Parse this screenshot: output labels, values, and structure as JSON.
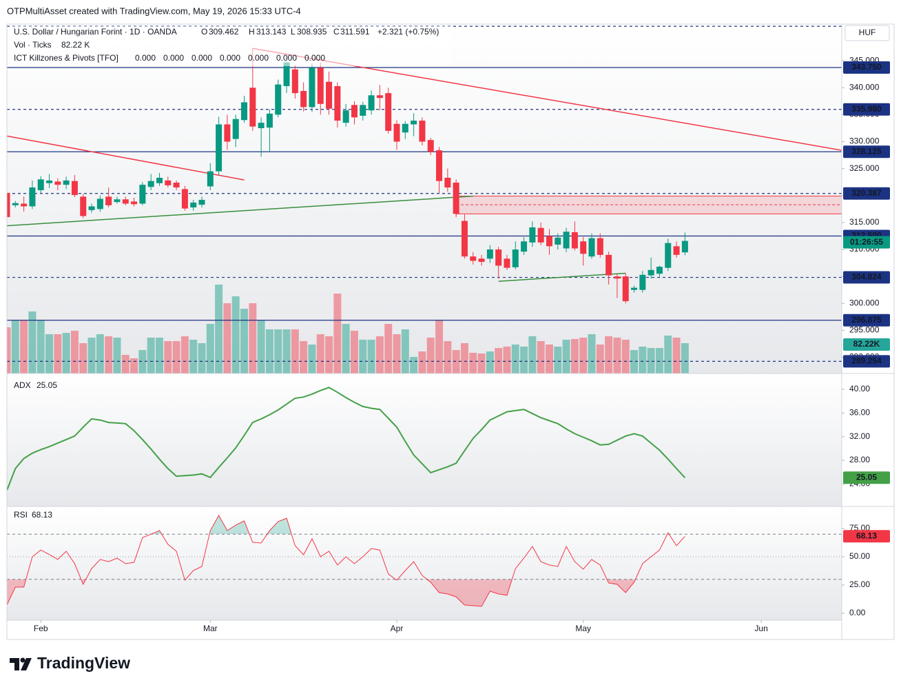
{
  "header": {
    "attribution": "OTPMultiAsset created with TradingView.com, May 19, 2026 15:33 UTC-4"
  },
  "footer": {
    "brand": "TradingView"
  },
  "chart_data": {
    "type": "candlestick",
    "title": "U.S. Dollar / Hungarian Forint · 1D · OANDA",
    "ohlc_labels": [
      "O",
      "H",
      "L",
      "C"
    ],
    "change": "+2.321 (+0.75%)",
    "currency": "HUF",
    "countdown": "01:26:55",
    "up_color": "#089981",
    "down_color": "#f23645",
    "level_color": "#1c3383",
    "open": [
      320.5,
      318.2,
      318.5,
      318,
      321,
      322.3,
      322.6,
      322,
      322.7,
      319.8,
      317.3,
      317.5,
      319.8,
      318.8,
      319.3,
      318.9,
      318.5,
      321.6,
      322.3,
      322.8,
      322.4,
      321.2,
      317.8,
      318.3,
      321.7,
      324.5,
      333.2,
      330.5,
      334,
      340,
      332.5,
      332.6,
      335,
      340.3,
      343.4,
      339.4,
      336.4,
      343.7,
      341.1,
      340.3,
      333.5,
      336.8,
      334.8,
      335.8,
      338.6,
      339,
      333.3,
      331.7,
      333.2,
      333.9,
      330.3,
      328.4,
      323.3,
      322.4,
      315.3,
      308.7,
      308.3,
      308.3,
      310,
      308.3,
      306.7,
      309.6,
      311.3,
      314,
      312.5,
      310.9,
      310.2,
      313.2,
      311.5,
      308.7,
      312.1,
      309,
      305,
      305,
      302.5,
      302.5,
      305.2,
      305.5,
      306.6,
      310.6,
      309.462
    ],
    "high": [
      322,
      319,
      319.8,
      322.8,
      323.6,
      324,
      323.2,
      323.5,
      323.8,
      320.3,
      318.5,
      320,
      321.5,
      319.8,
      319.8,
      319.6,
      322.5,
      324,
      324.2,
      323.5,
      322.8,
      321.8,
      319.2,
      319.8,
      326,
      334.6,
      335,
      335,
      338.5,
      347.3,
      334.5,
      336,
      341.5,
      345,
      344.2,
      341,
      344.5,
      344.7,
      343,
      341,
      337,
      337.5,
      337.4,
      339.5,
      340.5,
      340,
      334,
      333.8,
      335.3,
      334.5,
      330.7,
      329,
      325,
      323,
      316.5,
      309.5,
      309,
      310.8,
      310.5,
      309,
      311.5,
      312.3,
      315.2,
      315,
      313.8,
      313,
      314,
      315.2,
      312.3,
      313,
      313,
      309.6,
      305.5,
      305.6,
      303.3,
      306,
      308.5,
      307,
      312,
      311.5,
      313.143
    ],
    "low": [
      315.5,
      317.8,
      317,
      317.5,
      320.5,
      321.4,
      321,
      321.2,
      319.7,
      315.8,
      316.8,
      317,
      317.8,
      318.5,
      318.2,
      318,
      318.2,
      321,
      321.8,
      321.5,
      321,
      317.2,
      317.2,
      317.8,
      321,
      323.8,
      328.5,
      329,
      333.5,
      332,
      327.2,
      328,
      334.5,
      339,
      338,
      335.6,
      335.5,
      335,
      335,
      332.6,
      332.8,
      333.2,
      333.9,
      335,
      335.8,
      331.5,
      328.5,
      330.5,
      331,
      329.3,
      327.5,
      320.5,
      320.7,
      316,
      308.3,
      307.2,
      307,
      307.5,
      304.6,
      306.2,
      306.3,
      309,
      310.5,
      310.8,
      309,
      310,
      309.5,
      309.8,
      307,
      308.3,
      308.5,
      303.5,
      301,
      300,
      302,
      302,
      304.6,
      304.9,
      306,
      308.5,
      308.935
    ],
    "close": [
      316,
      318.6,
      318,
      321.5,
      323,
      322.8,
      322,
      322.8,
      320.1,
      316.2,
      318,
      319.4,
      318.2,
      319.3,
      318.5,
      318.4,
      322,
      322.7,
      323.3,
      321.9,
      321.5,
      317.6,
      318.7,
      319.2,
      324.5,
      333.2,
      330,
      334.2,
      337.3,
      332.8,
      333.5,
      335.2,
      340.6,
      344.7,
      339,
      336.4,
      343.7,
      337,
      336.1,
      333.9,
      335.8,
      334.5,
      336.8,
      338.6,
      338.1,
      332,
      330,
      333.3,
      333.9,
      330,
      328.1,
      322.7,
      321.5,
      316.6,
      308.7,
      307.9,
      307.7,
      310,
      307,
      306.6,
      310,
      311.5,
      314.1,
      311.3,
      310.6,
      312.2,
      313.3,
      310.2,
      309.2,
      312.1,
      309,
      305.2,
      304.6,
      300.4,
      302.9,
      305.3,
      306.2,
      306.8,
      311.2,
      309,
      311.591
    ],
    "xlim": [
      0,
      98.5
    ],
    "xticks": [
      {
        "value": 4,
        "label": "Feb"
      },
      {
        "value": 24,
        "label": "Mar"
      },
      {
        "value": 46,
        "label": "Apr"
      },
      {
        "value": 68,
        "label": "May"
      },
      {
        "value": 89,
        "label": "Jun"
      }
    ],
    "ylim": [
      287,
      351.8
    ],
    "yticks": [
      {
        "value": 290,
        "label": "290.000"
      },
      {
        "value": 295,
        "label": "295.000"
      },
      {
        "value": 300,
        "label": "300.000"
      },
      {
        "value": 305,
        "label": "305.000"
      },
      {
        "value": 310,
        "label": "310.000"
      },
      {
        "value": 315,
        "label": "315.000"
      },
      {
        "value": 320,
        "label": "320.000"
      },
      {
        "value": 325,
        "label": "325.000"
      },
      {
        "value": 330,
        "label": "330.000"
      },
      {
        "value": 335,
        "label": "335.000"
      },
      {
        "value": 340,
        "label": "340.000"
      },
      {
        "value": 345,
        "label": "345.000"
      }
    ],
    "levels": [
      {
        "value": 351.4,
        "style": "dashed"
      },
      {
        "value": 343.75,
        "label": "343.750",
        "style": "solid"
      },
      {
        "value": 335.98,
        "label": "335.980",
        "style": "dashed"
      },
      {
        "value": 328.125,
        "label": "328.125",
        "style": "solid"
      },
      {
        "value": 320.387,
        "label": "320.387",
        "style": "dashed"
      },
      {
        "value": 312.5,
        "label": "312.500",
        "style": "solid"
      },
      {
        "value": 304.824,
        "label": "304.824",
        "style": "dashed"
      },
      {
        "value": 296.875,
        "label": "296.875",
        "style": "solid"
      },
      {
        "value": 289.254,
        "label": "289.254",
        "style": "dashed"
      }
    ],
    "zone": {
      "start": 53,
      "top": 319.9,
      "bottom": 316.6,
      "mid": 318.3,
      "color": "#f23645"
    },
    "trendlines": [
      {
        "color": "#f23645",
        "from": [
          29,
          347.3
        ],
        "to": [
          98.5,
          328.4
        ]
      },
      {
        "color": "#f23645",
        "from": [
          0,
          331.05
        ],
        "to": [
          28,
          322.9
        ]
      },
      {
        "color": "#388e3c",
        "from": [
          0,
          314.4
        ],
        "to": [
          55,
          319.9
        ]
      },
      {
        "color": "#388e3c",
        "from": [
          58,
          304.1
        ],
        "to": [
          73,
          305.6
        ]
      }
    ],
    "volume": {
      "name": "Vol · Ticks",
      "legend_label": "82.22 K",
      "last_label": "82.22K",
      "label_color": "#26a69a",
      "values": [
        125200,
        143900,
        143900,
        168200,
        143900,
        106500,
        106500,
        110200,
        115900,
        82200,
        97200,
        106500,
        100900,
        97200,
        50500,
        41100,
        63500,
        97200,
        97200,
        87800,
        87800,
        100900,
        91600,
        82200,
        134500,
        241100,
        190600,
        209300,
        175700,
        190600,
        143900,
        119600,
        119600,
        119600,
        119600,
        87800,
        78500,
        106500,
        100900,
        216800,
        134500,
        115900,
        91600,
        91600,
        100900,
        134500,
        106500,
        119600,
        44800,
        59800,
        97200,
        143900,
        87800,
        63500,
        82200,
        56100,
        54200,
        59800,
        69100,
        72900,
        78500,
        72900,
        100900,
        87800,
        78500,
        72900,
        91600,
        93400,
        97200,
        106500,
        78500,
        100900,
        97200,
        91600,
        63500,
        72900,
        69100,
        69100,
        102800,
        97200,
        82220
      ]
    },
    "indicator": {
      "name": "ICT Killzones & Pivots [TFO]",
      "values": [
        "0.000",
        "0.000",
        "0.000",
        "0.000",
        "0.000",
        "0.000",
        "0.000"
      ],
      "color": "#2962ff"
    },
    "adx": {
      "name": "ADX",
      "last_label": "25.05",
      "color": "#43a047",
      "ylim": [
        20.19,
        42.33
      ],
      "yticks": [
        {
          "value": 24,
          "label": "24.00"
        },
        {
          "value": 28,
          "label": "28.00"
        },
        {
          "value": 32,
          "label": "32.00"
        },
        {
          "value": 36,
          "label": "36.00"
        },
        {
          "value": 40,
          "label": "40.00"
        }
      ],
      "values": [
        22.9,
        26.6,
        28.3,
        29.2,
        29.8,
        30.3,
        30.9,
        31.5,
        32.1,
        33.6,
        35,
        34.8,
        34.4,
        34.3,
        34.2,
        33,
        31.5,
        29.9,
        28.2,
        26.6,
        25.3,
        25.4,
        25.5,
        25.7,
        25.1,
        26.8,
        28.4,
        30.1,
        32.2,
        34.4,
        35,
        35.7,
        36.5,
        37.5,
        38.5,
        38.7,
        39.2,
        39.8,
        40.3,
        39.5,
        38.6,
        37.8,
        37.1,
        36.8,
        36.6,
        35.1,
        33.6,
        31.2,
        28.9,
        27.4,
        25.9,
        26.4,
        26.9,
        27.5,
        29.6,
        31.7,
        33.2,
        34.8,
        35.5,
        36.2,
        36.4,
        36.6,
        35.9,
        35.2,
        34.7,
        34.2,
        33.3,
        32.5,
        31.9,
        31.3,
        30.6,
        30.7,
        31.4,
        32.1,
        32.5,
        32.1,
        30.9,
        29.7,
        28.2,
        26.6,
        25.05
      ]
    },
    "rsi": {
      "name": "RSI",
      "last_label": "68.13",
      "color": "#f23645",
      "ylim": [
        -6.1,
        92.7
      ],
      "bands": [
        30,
        70
      ],
      "midline": 50,
      "yticks": [
        {
          "value": 0,
          "label": "0.00"
        },
        {
          "value": 25,
          "label": "25.00"
        },
        {
          "value": 50,
          "label": "50.00"
        },
        {
          "value": 75,
          "label": "75.00"
        }
      ],
      "values": [
        7.3,
        23.2,
        23.2,
        50,
        56,
        52,
        47.6,
        54.9,
        43.9,
        25.6,
        39.6,
        47.6,
        45.7,
        48.8,
        43.9,
        45.1,
        67,
        70,
        73.2,
        61,
        54.9,
        29.3,
        37.8,
        41.5,
        73.2,
        86.6,
        73.2,
        78,
        81.7,
        62.8,
        62.2,
        73.2,
        81.1,
        84.1,
        59.8,
        51.8,
        65.9,
        50,
        54.9,
        42.7,
        50,
        43.9,
        50,
        57.3,
        56,
        34.8,
        29.3,
        37.8,
        45.7,
        33.5,
        27.4,
        18.3,
        17.1,
        14.6,
        7.3,
        6.7,
        6.1,
        19.5,
        17.1,
        15.9,
        39.6,
        48.8,
        59.1,
        45.7,
        42.7,
        41.5,
        59.1,
        45.7,
        39,
        47.6,
        42.7,
        26.8,
        25.6,
        18.3,
        27.4,
        43.9,
        50,
        56,
        71.3,
        59.8,
        68.13
      ]
    }
  }
}
